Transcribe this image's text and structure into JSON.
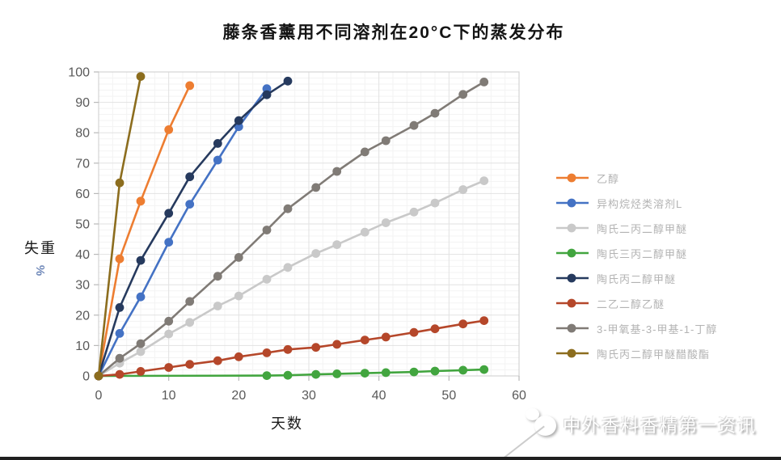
{
  "watermark": {
    "text": "中外香料香精第一资讯"
  },
  "chart_data": {
    "type": "line",
    "title": "藤条香薰用不同溶剂在20°C下的蒸发分布",
    "xlabel": "天数",
    "ylabel": "失重",
    "ylabel_unit": "%",
    "xlim": [
      0,
      60
    ],
    "ylim": [
      0,
      100
    ],
    "xticks": [
      0,
      10,
      20,
      30,
      40,
      50,
      60
    ],
    "yticks": [
      0,
      10,
      20,
      30,
      40,
      50,
      60,
      70,
      80,
      90,
      100
    ],
    "grid": true,
    "legend_position": "right",
    "series": [
      {
        "key": "ethanol",
        "name": "乙醇",
        "color": "#ED7D31",
        "points": [
          [
            0,
            0
          ],
          [
            3,
            38.5
          ],
          [
            6,
            57.5
          ],
          [
            10,
            81
          ],
          [
            13,
            95.5
          ]
        ]
      },
      {
        "key": "isoparaffin-l",
        "name": "异构烷烃类溶剂L",
        "color": "#4472C4",
        "points": [
          [
            0,
            0
          ],
          [
            3,
            14
          ],
          [
            6,
            26
          ],
          [
            10,
            44
          ],
          [
            13,
            56.5
          ],
          [
            17,
            71
          ],
          [
            20,
            82
          ],
          [
            24,
            94.5
          ]
        ]
      },
      {
        "key": "dow-dpm",
        "name": "陶氏二丙二醇甲醚",
        "color": "#C9C9C9",
        "points": [
          [
            0,
            0
          ],
          [
            3,
            4.2
          ],
          [
            6,
            8
          ],
          [
            10,
            13.8
          ],
          [
            13,
            17.6
          ],
          [
            17,
            23
          ],
          [
            20,
            26.3
          ],
          [
            24,
            31.8
          ],
          [
            27,
            35.7
          ],
          [
            31,
            40.3
          ],
          [
            34,
            43.2
          ],
          [
            38,
            47.3
          ],
          [
            41,
            50.4
          ],
          [
            45,
            53.9
          ],
          [
            48,
            56.9
          ],
          [
            52,
            61.3
          ],
          [
            55,
            64.2
          ]
        ]
      },
      {
        "key": "dow-tpm",
        "name": "陶氏三丙二醇甲醚",
        "color": "#42A53F",
        "points": [
          [
            0,
            0
          ],
          [
            24,
            0.1
          ],
          [
            27,
            0.2
          ],
          [
            31,
            0.5
          ],
          [
            34,
            0.7
          ],
          [
            38,
            0.9
          ],
          [
            41,
            1.1
          ],
          [
            45,
            1.3
          ],
          [
            48,
            1.6
          ],
          [
            52,
            1.9
          ],
          [
            55,
            2.1
          ]
        ]
      },
      {
        "key": "dow-pm",
        "name": "陶氏丙二醇甲醚",
        "color": "#263A5E",
        "points": [
          [
            0,
            0
          ],
          [
            3,
            22.5
          ],
          [
            6,
            38
          ],
          [
            10,
            53.5
          ],
          [
            13,
            65.5
          ],
          [
            17,
            76.5
          ],
          [
            20,
            84
          ],
          [
            24,
            92.5
          ],
          [
            27,
            97
          ]
        ]
      },
      {
        "key": "degee",
        "name": "二乙二醇乙醚",
        "color": "#B5472A",
        "points": [
          [
            0,
            0
          ],
          [
            3,
            0.5
          ],
          [
            6,
            1.5
          ],
          [
            10,
            2.8
          ],
          [
            13,
            3.8
          ],
          [
            17,
            5
          ],
          [
            20,
            6.3
          ],
          [
            24,
            7.6
          ],
          [
            27,
            8.7
          ],
          [
            31,
            9.4
          ],
          [
            34,
            10.4
          ],
          [
            38,
            11.8
          ],
          [
            41,
            12.8
          ],
          [
            45,
            14.3
          ],
          [
            48,
            15.5
          ],
          [
            52,
            17.1
          ],
          [
            55,
            18.2
          ]
        ]
      },
      {
        "key": "mmb",
        "name": "3-甲氧基-3-甲基-1-丁醇",
        "color": "#807B76",
        "points": [
          [
            0,
            0
          ],
          [
            3,
            5.8
          ],
          [
            6,
            10.6
          ],
          [
            10,
            18
          ],
          [
            13,
            24.5
          ],
          [
            17,
            32.8
          ],
          [
            20,
            39
          ],
          [
            24,
            48
          ],
          [
            27,
            55
          ],
          [
            31,
            62
          ],
          [
            34,
            67.3
          ],
          [
            38,
            73.7
          ],
          [
            41,
            77.4
          ],
          [
            45,
            82.4
          ],
          [
            48,
            86.4
          ],
          [
            52,
            92.6
          ],
          [
            55,
            96.7
          ]
        ]
      },
      {
        "key": "dow-pma",
        "name": "陶氏丙二醇甲醚醋酸酯",
        "color": "#8C6D1E",
        "points": [
          [
            0,
            0
          ],
          [
            3,
            63.5
          ],
          [
            6,
            98.5
          ]
        ]
      }
    ]
  }
}
